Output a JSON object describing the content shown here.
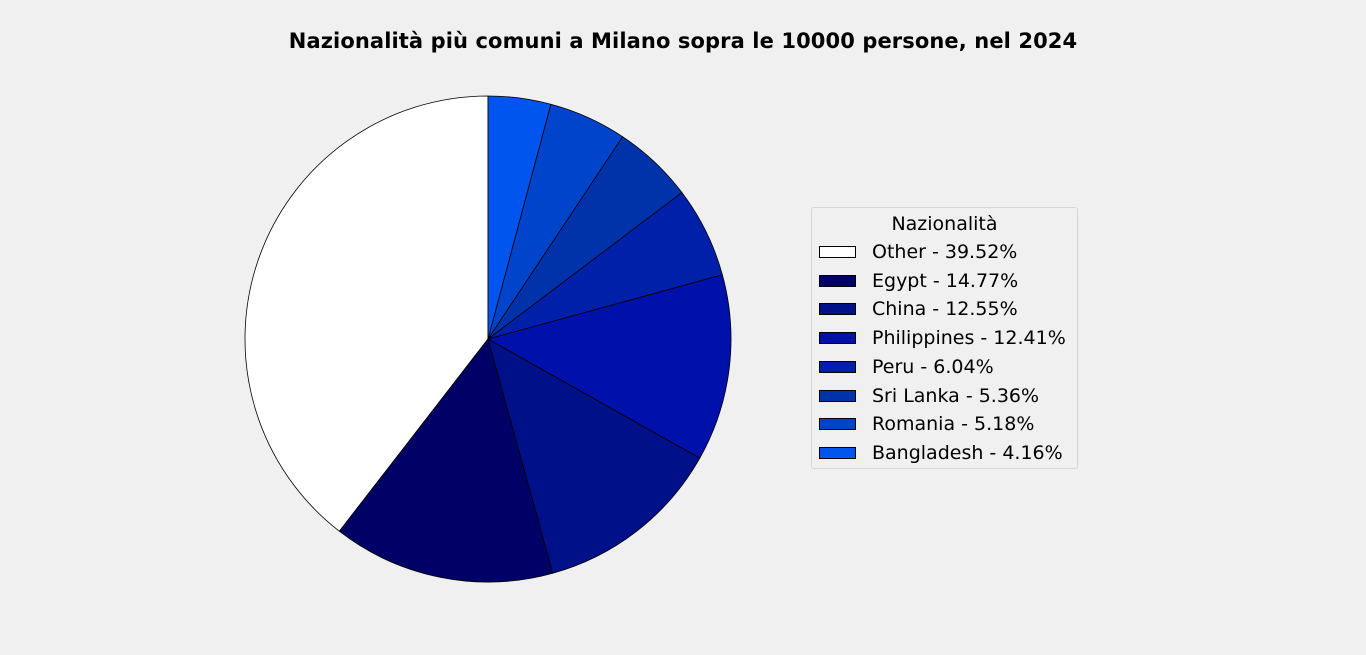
{
  "chart_data": {
    "type": "pie",
    "title": "Nazionalità più comuni a Milano sopra le 10000 persone, nel 2024",
    "legend_title": "Nazionalità",
    "legend_position": "right",
    "start_angle_deg": 90,
    "direction": "counterclockwise",
    "slices": [
      {
        "name": "Other",
        "percent": 39.52,
        "label": "Other - 39.52%",
        "color": "#ffffff"
      },
      {
        "name": "Egypt",
        "percent": 14.77,
        "label": "Egypt - 14.77%",
        "color": "#000066"
      },
      {
        "name": "China",
        "percent": 12.55,
        "label": "China - 12.55%",
        "color": "#001088"
      },
      {
        "name": "Philippines",
        "percent": 12.41,
        "label": "Philippines - 12.41%",
        "color": "#0010aa"
      },
      {
        "name": "Peru",
        "percent": 6.04,
        "label": "Peru - 6.04%",
        "color": "#0020aa"
      },
      {
        "name": "Sri Lanka",
        "percent": 5.36,
        "label": "Sri Lanka - 5.36%",
        "color": "#0033aa"
      },
      {
        "name": "Romania",
        "percent": 5.18,
        "label": "Romania - 5.18%",
        "color": "#0044cc"
      },
      {
        "name": "Bangladesh",
        "percent": 4.16,
        "label": "Bangladesh - 4.16%",
        "color": "#0055ee"
      }
    ]
  }
}
